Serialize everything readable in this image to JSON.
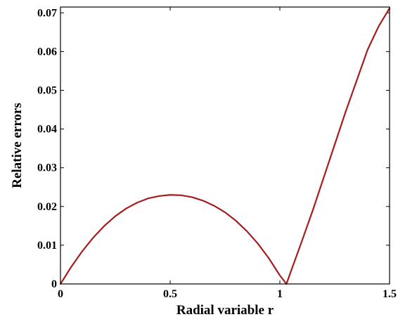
{
  "chart_data": {
    "type": "line",
    "title": "",
    "xlabel": "Radial variable r",
    "ylabel": "Relative errors",
    "xlim": [
      0,
      1.5
    ],
    "ylim": [
      0,
      0.0715
    ],
    "xticks": [
      0,
      0.5,
      1,
      1.5
    ],
    "xtick_labels": [
      "0",
      "0.5",
      "1",
      "1.5"
    ],
    "yticks": [
      0,
      0.01,
      0.02,
      0.03,
      0.04,
      0.05,
      0.06,
      0.07
    ],
    "ytick_labels": [
      "0",
      "0.01",
      "0.02",
      "0.03",
      "0.04",
      "0.05",
      "0.06",
      "0.07"
    ],
    "grid": false,
    "series": [
      {
        "color": "#a51d1d",
        "x": [
          0,
          0.05,
          0.1,
          0.15,
          0.2,
          0.25,
          0.3,
          0.35,
          0.4,
          0.45,
          0.5,
          0.55,
          0.6,
          0.65,
          0.7,
          0.75,
          0.8,
          0.85,
          0.9,
          0.95,
          1.0,
          1.03,
          1.05,
          1.1,
          1.15,
          1.2,
          1.25,
          1.3,
          1.35,
          1.4,
          1.45,
          1.5
        ],
        "y": [
          0,
          0.0045,
          0.0085,
          0.012,
          0.015,
          0.0175,
          0.0195,
          0.021,
          0.0221,
          0.0227,
          0.023,
          0.0229,
          0.0224,
          0.0215,
          0.0202,
          0.0185,
          0.0163,
          0.0136,
          0.0104,
          0.0066,
          0.0022,
          0.0,
          0.0032,
          0.011,
          0.019,
          0.0275,
          0.036,
          0.0445,
          0.0525,
          0.0605,
          0.0665,
          0.0712
        ]
      }
    ]
  }
}
